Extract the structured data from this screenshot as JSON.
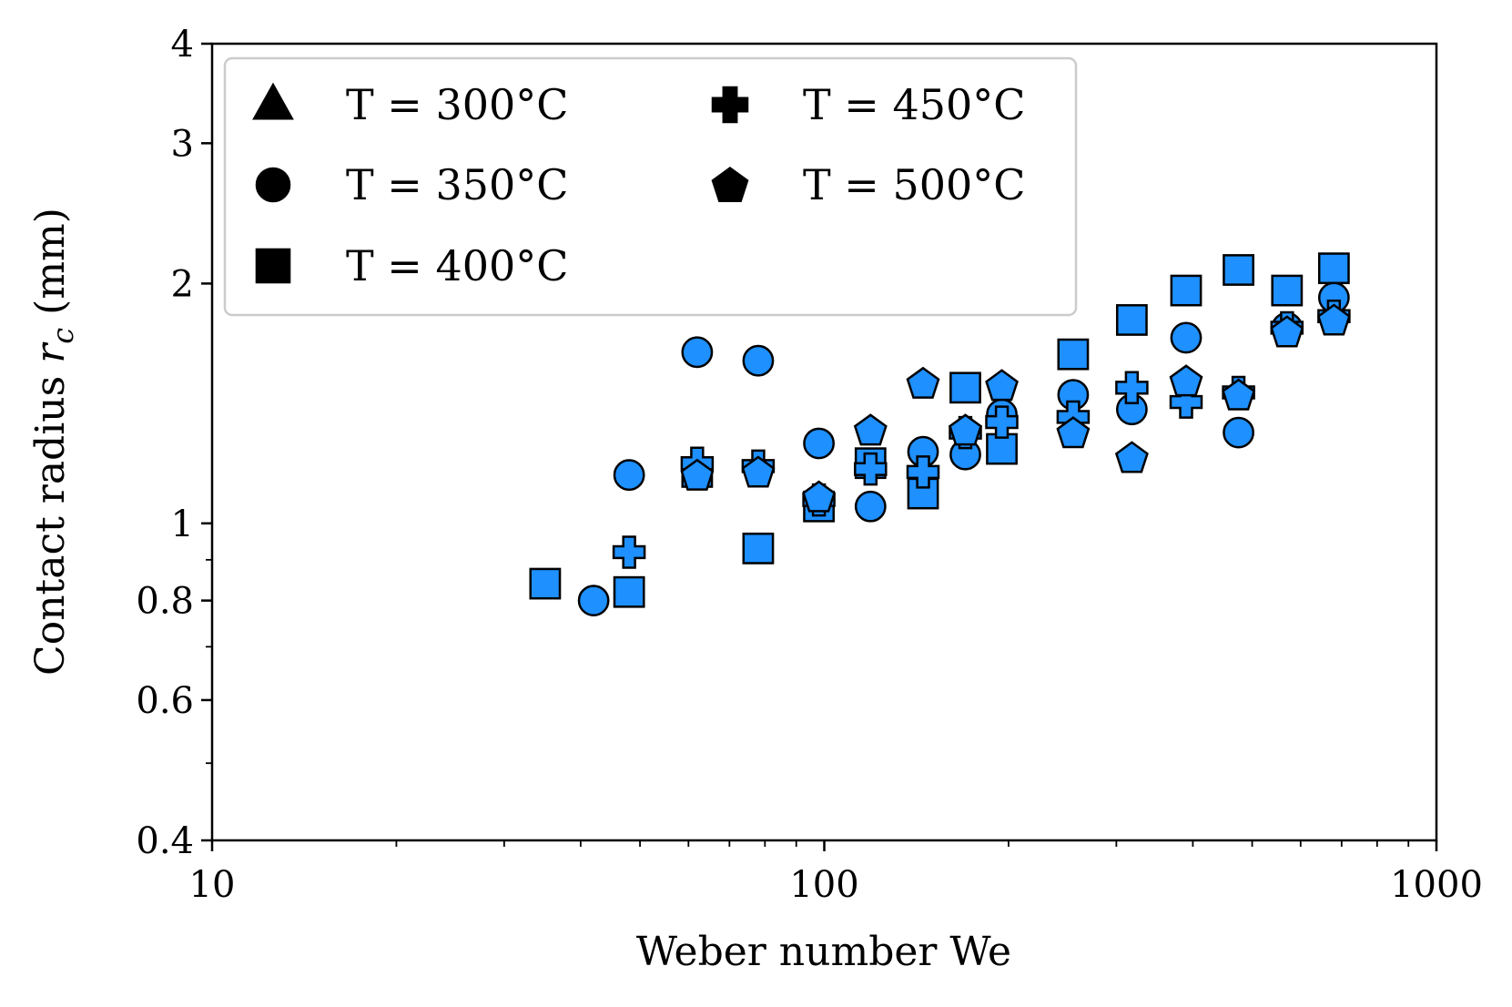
{
  "chart_data": {
    "type": "scatter",
    "title": "",
    "xlabel": "Weber number We",
    "ylabel": "Contact radius r_c (mm)",
    "xscale": "log",
    "yscale": "log",
    "xlim": [
      10,
      1000
    ],
    "ylim": [
      0.4,
      4
    ],
    "xticks": [
      10,
      100,
      1000
    ],
    "xtick_labels": [
      "10",
      "100",
      "1000"
    ],
    "yticks": [
      0.4,
      0.6,
      0.8,
      1,
      2,
      3,
      4
    ],
    "ytick_labels": [
      "0.4",
      "0.6",
      "0.8",
      "1",
      "2",
      "3",
      "4"
    ],
    "grid": false,
    "legend_position": "top-left",
    "marker_face_color": "#1e90ff",
    "marker_edge_color": "#000000",
    "series": [
      {
        "name": "T = 300°C",
        "marker": "triangle",
        "points": []
      },
      {
        "name": "T = 350°C",
        "marker": "circle",
        "points": [
          [
            42,
            0.8
          ],
          [
            48,
            1.15
          ],
          [
            62,
            1.64
          ],
          [
            78,
            1.6
          ],
          [
            98,
            1.26
          ],
          [
            119,
            1.05
          ],
          [
            145,
            1.23
          ],
          [
            170,
            1.22
          ],
          [
            195,
            1.37
          ],
          [
            255,
            1.45
          ],
          [
            318,
            1.39
          ],
          [
            390,
            1.71
          ],
          [
            475,
            1.3
          ],
          [
            570,
            1.76
          ],
          [
            680,
            1.92
          ]
        ]
      },
      {
        "name": "T = 400°C",
        "marker": "square",
        "points": [
          [
            35,
            0.84
          ],
          [
            48,
            0.82
          ],
          [
            62,
            1.16
          ],
          [
            78,
            0.93
          ],
          [
            98,
            1.05
          ],
          [
            119,
            1.19
          ],
          [
            145,
            1.09
          ],
          [
            170,
            1.48
          ],
          [
            195,
            1.24
          ],
          [
            255,
            1.63
          ],
          [
            318,
            1.8
          ],
          [
            390,
            1.96
          ],
          [
            475,
            2.08
          ],
          [
            570,
            1.96
          ],
          [
            680,
            2.09
          ]
        ]
      },
      {
        "name": "T = 450°C",
        "marker": "plus",
        "points": [
          [
            48,
            0.92
          ],
          [
            62,
            1.19
          ],
          [
            78,
            1.18
          ],
          [
            98,
            1.07
          ],
          [
            119,
            1.17
          ],
          [
            145,
            1.16
          ],
          [
            170,
            1.3
          ],
          [
            195,
            1.34
          ],
          [
            255,
            1.36
          ],
          [
            318,
            1.48
          ],
          [
            390,
            1.42
          ],
          [
            475,
            1.46
          ],
          [
            570,
            1.76
          ],
          [
            680,
            1.82
          ]
        ]
      },
      {
        "name": "T = 500°C",
        "marker": "pentagon",
        "points": [
          [
            62,
            1.15
          ],
          [
            78,
            1.16
          ],
          [
            98,
            1.08
          ],
          [
            119,
            1.31
          ],
          [
            145,
            1.5
          ],
          [
            170,
            1.31
          ],
          [
            195,
            1.49
          ],
          [
            255,
            1.3
          ],
          [
            318,
            1.21
          ],
          [
            390,
            1.51
          ],
          [
            475,
            1.45
          ],
          [
            570,
            1.74
          ],
          [
            680,
            1.8
          ]
        ]
      }
    ]
  }
}
